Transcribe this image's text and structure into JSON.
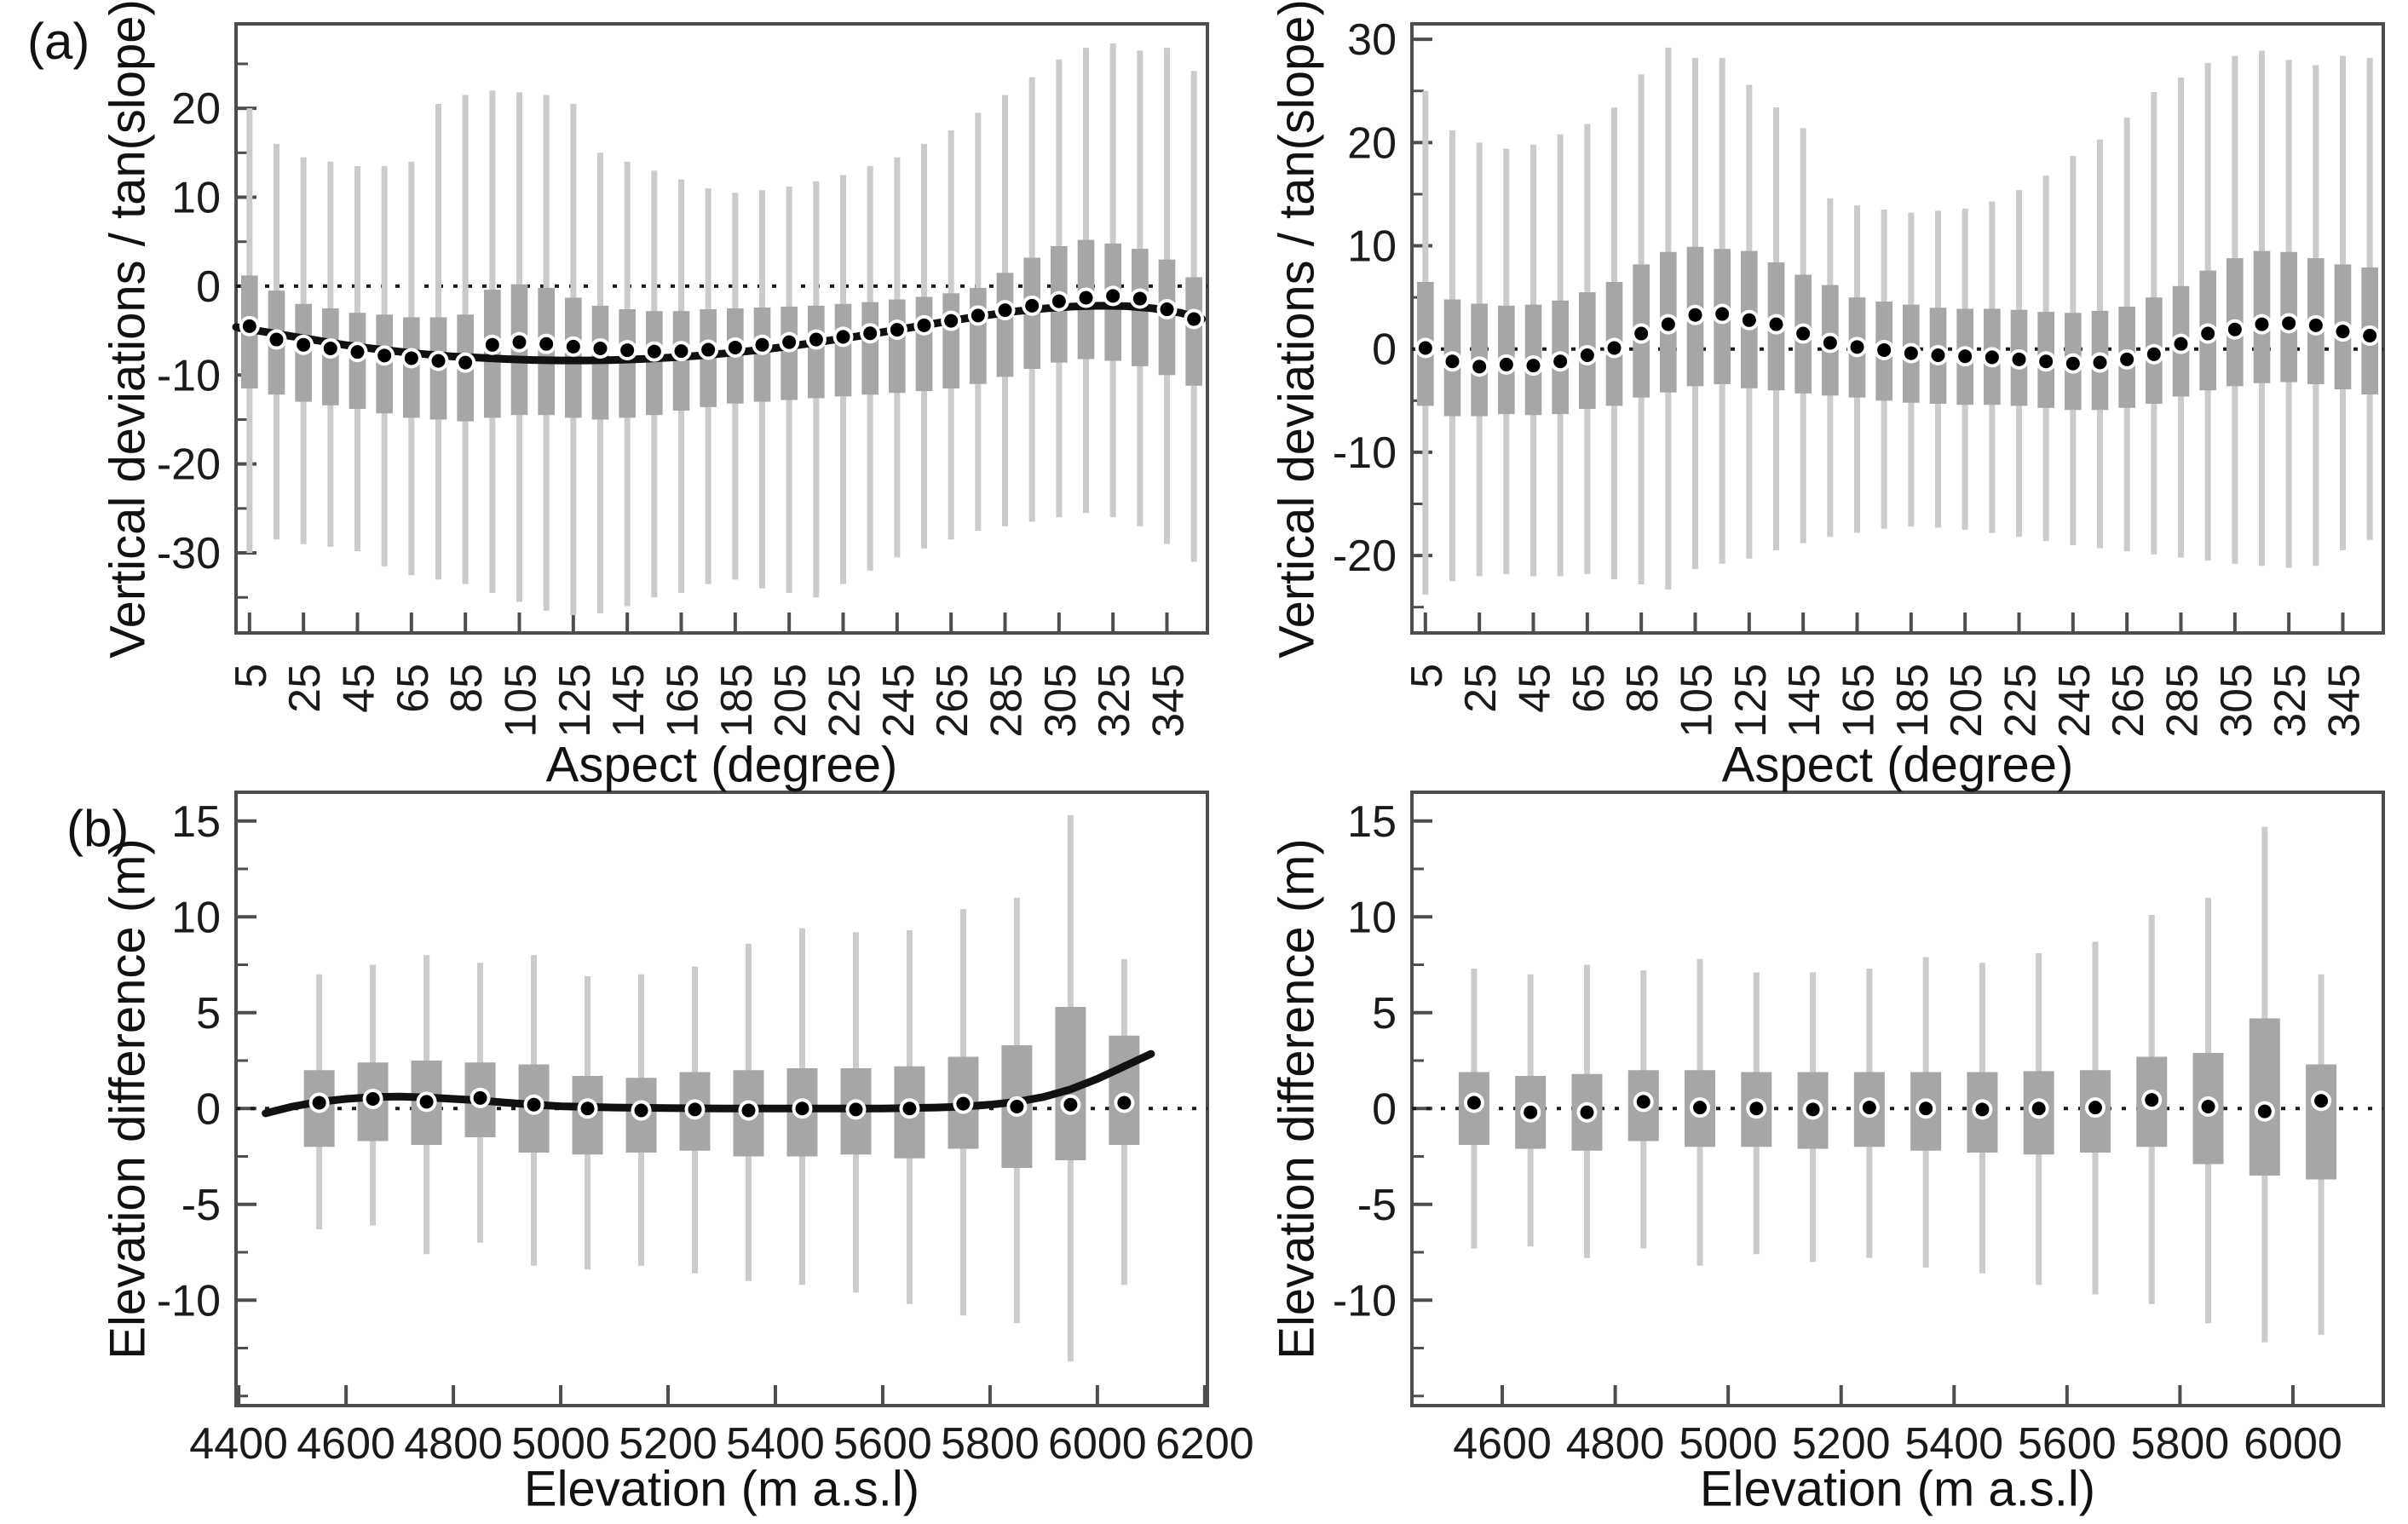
{
  "figure": {
    "panel_a_label": "(a)",
    "panel_b_label": "(b)",
    "colors": {
      "box_fill": "#a6a6a6",
      "whisker": "#cbcbcb",
      "median": "#000000",
      "halo": "#ffffff",
      "curve": "#111111",
      "zero": "#1a1a1a",
      "axis": "#4d4d4d",
      "text": "#1a1a1a"
    }
  },
  "chart_data": [
    {
      "id": "aspect-boxplot-left",
      "type": "box",
      "xlabel": "Aspect (degree)",
      "ylabel": "Vertical deviations / tan(slope)",
      "xlim": [
        0,
        360
      ],
      "ylim": [
        -39,
        29.5
      ],
      "xticks": [
        5,
        25,
        45,
        65,
        85,
        105,
        125,
        145,
        165,
        185,
        205,
        225,
        245,
        265,
        285,
        305,
        325,
        345
      ],
      "yticks_major": [
        -30,
        -20,
        -10,
        0,
        10,
        20
      ],
      "yticks_minor": [
        -35,
        -25,
        -15,
        -5,
        5,
        15,
        25
      ],
      "zero_line": 0,
      "grid": false,
      "legend": null,
      "x": [
        5,
        15,
        25,
        35,
        45,
        55,
        65,
        75,
        85,
        95,
        105,
        115,
        125,
        135,
        145,
        155,
        165,
        175,
        185,
        195,
        205,
        215,
        225,
        235,
        245,
        255,
        265,
        275,
        285,
        295,
        305,
        315,
        325,
        335,
        345,
        355
      ],
      "median": [
        -4.5,
        -6.0,
        -6.6,
        -7.0,
        -7.4,
        -7.8,
        -8.1,
        -8.4,
        -8.6,
        -6.6,
        -6.3,
        -6.5,
        -6.8,
        -7.0,
        -7.2,
        -7.35,
        -7.3,
        -7.15,
        -6.9,
        -6.6,
        -6.3,
        -6.0,
        -5.7,
        -5.3,
        -4.9,
        -4.4,
        -3.9,
        -3.3,
        -2.7,
        -2.2,
        -1.7,
        -1.3,
        -1.1,
        -1.4,
        -2.6,
        -3.7
      ],
      "q3": [
        1.2,
        -0.5,
        -2.0,
        -2.5,
        -3.0,
        -3.2,
        -3.5,
        -3.5,
        -3.2,
        -0.4,
        0.2,
        -0.2,
        -1.3,
        -2.2,
        -2.6,
        -2.8,
        -2.8,
        -2.6,
        -2.5,
        -2.4,
        -2.3,
        -2.2,
        -2.0,
        -1.8,
        -1.5,
        -1.2,
        -0.8,
        -0.2,
        1.5,
        3.2,
        4.5,
        5.2,
        4.8,
        4.2,
        3.0,
        1.0
      ],
      "q1": [
        -11.5,
        -12.2,
        -13.0,
        -13.4,
        -13.8,
        -14.3,
        -14.8,
        -15.0,
        -15.2,
        -14.8,
        -14.5,
        -14.5,
        -14.8,
        -15.0,
        -14.8,
        -14.5,
        -14.0,
        -13.6,
        -13.2,
        -13.0,
        -12.8,
        -12.6,
        -12.4,
        -12.2,
        -12.0,
        -11.8,
        -11.5,
        -11.0,
        -10.2,
        -9.3,
        -8.6,
        -8.2,
        -8.4,
        -9.0,
        -10.0,
        -11.2
      ],
      "hi": [
        20,
        16,
        14.5,
        14,
        13.5,
        13.5,
        14,
        20.5,
        21.5,
        22,
        21.8,
        21.5,
        20.5,
        15,
        14,
        13,
        12,
        11,
        10.5,
        10.8,
        11.2,
        11.8,
        12.5,
        13.5,
        14.5,
        16,
        17.5,
        19.5,
        21.5,
        23.5,
        25.5,
        26.8,
        27.3,
        26.5,
        26.8,
        24.2
      ],
      "lo": [
        -30,
        -28.5,
        -29,
        -29.3,
        -29.8,
        -31.5,
        -32.5,
        -33,
        -33.5,
        -34.5,
        -35.5,
        -36.5,
        -37,
        -36.8,
        -36,
        -35,
        -34.5,
        -33.5,
        -33,
        -34,
        -34.5,
        -35,
        -33.5,
        -32,
        -30.5,
        -29.5,
        -28.5,
        -27.5,
        -27,
        -26.5,
        -26,
        -25.5,
        -26,
        -27,
        -29,
        -31
      ],
      "curve": {
        "x": [
          0,
          10,
          20,
          30,
          40,
          50,
          60,
          70,
          80,
          90,
          100,
          110,
          120,
          130,
          140,
          150,
          160,
          170,
          180,
          190,
          200,
          210,
          220,
          230,
          240,
          250,
          260,
          270,
          280,
          290,
          300,
          310,
          320,
          330,
          340,
          350,
          358
        ],
        "y": [
          -4.6,
          -5.1,
          -5.6,
          -6.1,
          -6.6,
          -7.0,
          -7.35,
          -7.65,
          -7.9,
          -8.05,
          -8.2,
          -8.3,
          -8.35,
          -8.35,
          -8.3,
          -8.2,
          -8.05,
          -7.85,
          -7.6,
          -7.3,
          -6.95,
          -6.55,
          -6.1,
          -5.65,
          -5.15,
          -4.65,
          -4.15,
          -3.65,
          -3.2,
          -2.8,
          -2.5,
          -2.3,
          -2.2,
          -2.25,
          -2.5,
          -3.0,
          -3.7
        ]
      }
    },
    {
      "id": "aspect-boxplot-right",
      "type": "box",
      "xlabel": "Aspect (degree)",
      "ylabel": "Vertical deviations / tan(slope)",
      "xlim": [
        0,
        360
      ],
      "ylim": [
        -27.5,
        31.5
      ],
      "xticks": [
        5,
        25,
        45,
        65,
        85,
        105,
        125,
        145,
        165,
        185,
        205,
        225,
        245,
        265,
        285,
        305,
        325,
        345
      ],
      "yticks_major": [
        -20,
        -10,
        0,
        10,
        20,
        30
      ],
      "yticks_minor": [
        -25,
        -15,
        -5,
        5,
        15,
        25
      ],
      "zero_line": 0,
      "grid": false,
      "legend": null,
      "x": [
        5,
        15,
        25,
        35,
        45,
        55,
        65,
        75,
        85,
        95,
        105,
        115,
        125,
        135,
        145,
        155,
        165,
        175,
        185,
        195,
        205,
        215,
        225,
        235,
        245,
        255,
        265,
        275,
        285,
        295,
        305,
        315,
        325,
        335,
        345,
        355
      ],
      "median": [
        0.1,
        -1.2,
        -1.7,
        -1.5,
        -1.6,
        -1.2,
        -0.6,
        0.1,
        1.5,
        2.4,
        3.3,
        3.4,
        2.8,
        2.4,
        1.5,
        0.6,
        0.2,
        -0.1,
        -0.4,
        -0.6,
        -0.7,
        -0.8,
        -1.0,
        -1.2,
        -1.4,
        -1.3,
        -1.0,
        -0.5,
        0.5,
        1.5,
        1.9,
        2.4,
        2.5,
        2.3,
        1.7,
        1.3
      ],
      "q3": [
        6.5,
        4.8,
        4.4,
        4.2,
        4.3,
        4.7,
        5.5,
        6.5,
        8.2,
        9.4,
        9.9,
        9.7,
        9.5,
        8.4,
        7.2,
        6.2,
        5.0,
        4.6,
        4.3,
        4.0,
        3.9,
        3.9,
        3.8,
        3.6,
        3.5,
        3.7,
        4.1,
        5.0,
        6.1,
        7.6,
        8.8,
        9.5,
        9.4,
        8.8,
        8.2,
        7.9
      ],
      "q1": [
        -5.5,
        -6.5,
        -6.5,
        -6.3,
        -6.4,
        -6.3,
        -5.8,
        -5.5,
        -4.7,
        -4.2,
        -3.6,
        -3.4,
        -3.8,
        -4.0,
        -4.3,
        -4.5,
        -4.7,
        -5.0,
        -5.2,
        -5.3,
        -5.4,
        -5.4,
        -5.5,
        -5.7,
        -5.9,
        -5.9,
        -5.7,
        -5.3,
        -4.6,
        -4.0,
        -3.6,
        -3.3,
        -3.2,
        -3.4,
        -3.9,
        -4.4
      ],
      "hi": [
        25,
        21.2,
        20,
        19.4,
        19.8,
        20.8,
        21.8,
        23.4,
        26.6,
        29.2,
        28.2,
        28.2,
        25.6,
        23.4,
        21.4,
        14.6,
        13.9,
        13.5,
        13.2,
        13.4,
        13.6,
        14.3,
        15.4,
        16.8,
        18.7,
        20.3,
        22.4,
        24.9,
        26.3,
        27.7,
        28.4,
        28.9,
        28.0,
        27.5,
        28.4,
        28.2
      ],
      "lo": [
        -23.8,
        -22.5,
        -22.0,
        -21.8,
        -22.0,
        -22.0,
        -21.8,
        -22.3,
        -22.8,
        -23.3,
        -21.3,
        -20.8,
        -20.3,
        -19.5,
        -18.8,
        -18.2,
        -17.8,
        -17.4,
        -17.2,
        -17.3,
        -17.5,
        -17.8,
        -18.2,
        -18.6,
        -19.0,
        -19.3,
        -19.6,
        -19.9,
        -20.2,
        -20.5,
        -20.8,
        -21.0,
        -21.2,
        -21.0,
        -19.5,
        -18.5
      ]
    },
    {
      "id": "elevation-boxplot-left",
      "type": "box",
      "xlabel": "Elevation (m a.s.l)",
      "ylabel": "Elevation difference (m)",
      "xlim": [
        4395,
        6205
      ],
      "ylim": [
        -15.5,
        16.5
      ],
      "xticks": [
        4400,
        4600,
        4800,
        5000,
        5200,
        5400,
        5600,
        5800,
        6000,
        6200
      ],
      "yticks_major": [
        -10,
        -5,
        0,
        5,
        10,
        15
      ],
      "yticks_minor": [
        -15,
        -12.5,
        -7.5,
        -2.5,
        2.5,
        7.5,
        12.5
      ],
      "zero_line": 0,
      "grid": false,
      "legend": null,
      "x": [
        4550,
        4650,
        4750,
        4850,
        4950,
        5050,
        5150,
        5250,
        5350,
        5450,
        5550,
        5650,
        5750,
        5850,
        5950,
        6050
      ],
      "median": [
        0.3,
        0.5,
        0.35,
        0.55,
        0.2,
        0.0,
        -0.1,
        -0.05,
        -0.1,
        0.0,
        -0.05,
        0.0,
        0.25,
        0.1,
        0.2,
        0.3
      ],
      "q3": [
        2.0,
        2.4,
        2.5,
        2.4,
        2.3,
        1.7,
        1.6,
        1.9,
        2.0,
        2.1,
        2.1,
        2.2,
        2.7,
        3.3,
        5.3,
        3.8
      ],
      "q1": [
        -2.0,
        -1.7,
        -1.9,
        -1.5,
        -2.3,
        -2.4,
        -2.3,
        -2.2,
        -2.5,
        -2.5,
        -2.4,
        -2.6,
        -2.1,
        -3.1,
        -2.7,
        -1.9
      ],
      "hi": [
        7.0,
        7.5,
        8.0,
        7.6,
        8.0,
        6.9,
        7.0,
        7.4,
        8.6,
        9.4,
        9.2,
        9.3,
        10.4,
        11.0,
        15.3,
        7.8
      ],
      "lo": [
        -6.3,
        -6.1,
        -7.6,
        -7.0,
        -8.2,
        -8.4,
        -8.2,
        -8.6,
        -9.0,
        -9.2,
        -9.6,
        -10.2,
        -10.8,
        -11.2,
        -13.2,
        -9.2
      ],
      "curve": {
        "x": [
          4450,
          4500,
          4550,
          4600,
          4650,
          4700,
          4750,
          4800,
          4850,
          4900,
          4950,
          5000,
          5100,
          5200,
          5300,
          5400,
          5500,
          5600,
          5700,
          5750,
          5800,
          5850,
          5900,
          5950,
          6000,
          6050,
          6100
        ],
        "y": [
          -0.25,
          0.1,
          0.35,
          0.5,
          0.6,
          0.62,
          0.58,
          0.5,
          0.42,
          0.3,
          0.2,
          0.12,
          0.05,
          0.02,
          0.0,
          0.0,
          0.0,
          0.0,
          0.05,
          0.1,
          0.2,
          0.35,
          0.6,
          1.0,
          1.55,
          2.2,
          2.85
        ]
      }
    },
    {
      "id": "elevation-boxplot-right",
      "type": "box",
      "xlabel": "Elevation (m a.s.l)",
      "ylabel": "Elevation difference (m)",
      "xlim": [
        4440,
        6160
      ],
      "ylim": [
        -15.5,
        16.5
      ],
      "xticks": [
        4600,
        4800,
        5000,
        5200,
        5400,
        5600,
        5800,
        6000
      ],
      "yticks_major": [
        -10,
        -5,
        0,
        5,
        10,
        15
      ],
      "yticks_minor": [
        -15,
        -12.5,
        -7.5,
        -2.5,
        2.5,
        7.5,
        12.5
      ],
      "zero_line": 0,
      "grid": false,
      "legend": null,
      "x": [
        4550,
        4650,
        4750,
        4850,
        4950,
        5050,
        5150,
        5250,
        5350,
        5450,
        5550,
        5650,
        5750,
        5850,
        5950,
        6050
      ],
      "median": [
        0.3,
        -0.2,
        -0.2,
        0.35,
        0.05,
        0.0,
        -0.05,
        0.05,
        0.0,
        -0.05,
        0.0,
        0.05,
        0.45,
        0.1,
        -0.15,
        0.4
      ],
      "q3": [
        1.9,
        1.7,
        1.8,
        2.0,
        2.0,
        1.9,
        1.9,
        1.9,
        1.9,
        1.9,
        1.95,
        2.0,
        2.7,
        2.9,
        4.7,
        2.3
      ],
      "q1": [
        -1.9,
        -2.1,
        -2.2,
        -1.7,
        -2.0,
        -2.0,
        -2.1,
        -2.0,
        -2.2,
        -2.3,
        -2.4,
        -2.3,
        -2.0,
        -2.9,
        -3.5,
        -3.7
      ],
      "hi": [
        7.3,
        7.0,
        7.5,
        7.2,
        7.8,
        7.1,
        7.1,
        7.3,
        7.9,
        7.6,
        8.1,
        8.7,
        10.1,
        11.0,
        14.7,
        7.0
      ],
      "lo": [
        -7.3,
        -7.2,
        -7.8,
        -7.3,
        -8.2,
        -7.6,
        -8.0,
        -7.8,
        -8.3,
        -8.6,
        -9.2,
        -9.7,
        -10.2,
        -11.2,
        -12.2,
        -11.8
      ]
    }
  ]
}
